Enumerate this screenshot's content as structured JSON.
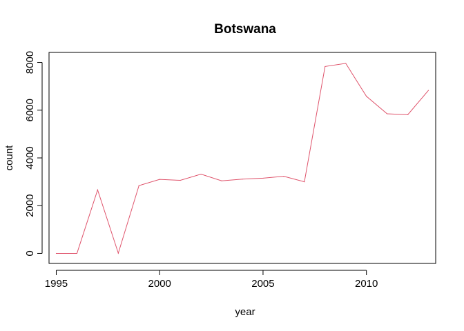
{
  "chart_data": {
    "type": "line",
    "title": "Botswana",
    "xlabel": "year",
    "ylabel": "count",
    "xlim": [
      1994.65,
      2013.35
    ],
    "ylim": [
      -420,
      8420
    ],
    "xticks": [
      1995,
      2000,
      2005,
      2010
    ],
    "yticks": [
      0,
      2000,
      4000,
      6000,
      8000
    ],
    "grid": false,
    "line_color": "#DF536B",
    "series": [
      {
        "x": [
          1995,
          1996,
          1997,
          1998,
          1999,
          2000,
          2001,
          2002,
          2003,
          2004,
          2005,
          2006,
          2007,
          2008,
          2009,
          2010,
          2011,
          2012,
          2013
        ],
        "values": [
          0,
          0,
          2660,
          10,
          2840,
          3100,
          3060,
          3320,
          3040,
          3110,
          3150,
          3230,
          3000,
          7830,
          7960,
          6580,
          5850,
          5810,
          6830
        ]
      }
    ]
  }
}
